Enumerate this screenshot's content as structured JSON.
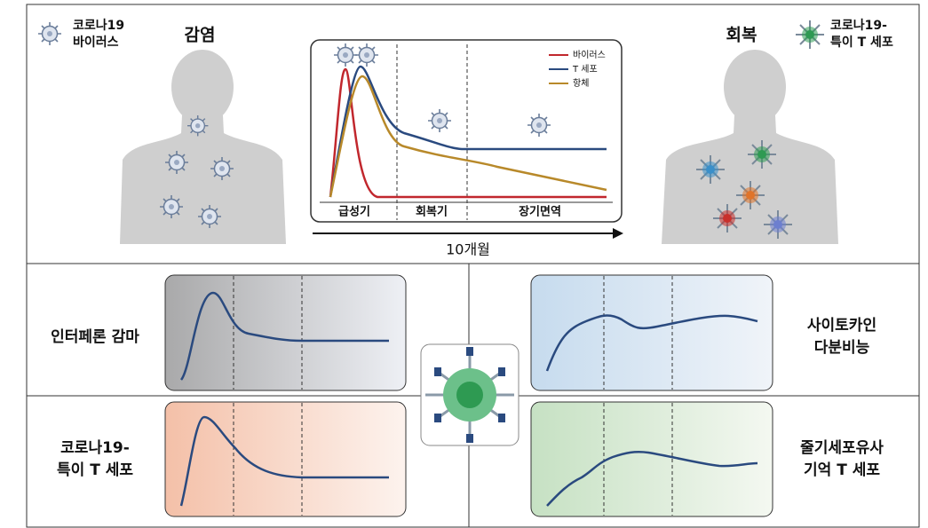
{
  "header": {
    "virus_label": [
      "코로나19",
      "바이러스"
    ],
    "infection": "감염",
    "recovery": "회복",
    "cell_label": [
      "코로나19-",
      "특이 T 세포"
    ]
  },
  "center_chart": {
    "legend": [
      "바이러스",
      "T 세포",
      "항체"
    ],
    "phases": [
      "급성기",
      "회복기",
      "장기면역"
    ],
    "x_label": "10개월"
  },
  "panels": [
    {
      "label": [
        "인터페론 감마"
      ]
    },
    {
      "label": [
        "사이토카인",
        "다분비능"
      ]
    },
    {
      "label": [
        "코로나19-",
        "특이 T 세포"
      ]
    },
    {
      "label": [
        "줄기세포유사",
        "기억 T 세포"
      ]
    }
  ]
}
